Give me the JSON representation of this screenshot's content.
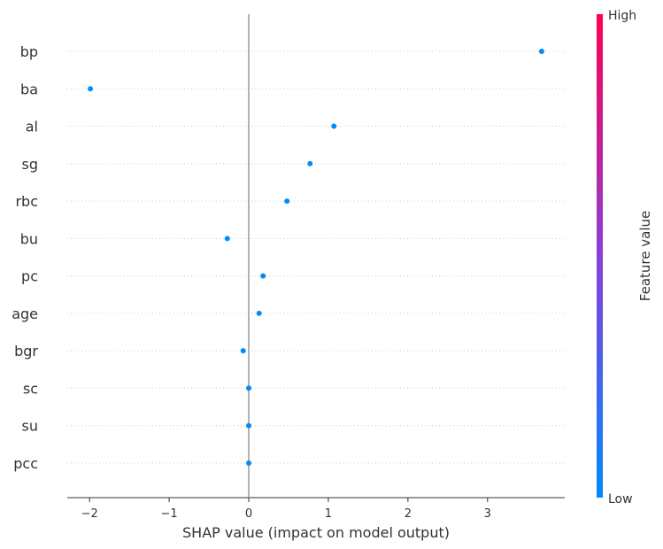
{
  "chart_data": {
    "type": "scatter",
    "xlabel": "SHAP value (impact on model output)",
    "xlim": [
      -2.28,
      3.97
    ],
    "x_ticks": [
      -2,
      -1,
      0,
      1,
      2,
      3
    ],
    "x_tick_labels": [
      "−2",
      "−1",
      "0",
      "1",
      "2",
      "3"
    ],
    "features": [
      "bp",
      "ba",
      "al",
      "sg",
      "rbc",
      "bu",
      "pc",
      "age",
      "bgr",
      "sc",
      "su",
      "pcc"
    ],
    "shap_values": [
      3.68,
      -1.99,
      1.07,
      0.77,
      0.48,
      -0.27,
      0.18,
      0.13,
      -0.07,
      0.0,
      0.0,
      0.0
    ],
    "point_color": "#008bfb",
    "colorbar": {
      "label": "Feature value",
      "high_label": "High",
      "low_label": "Low",
      "colors": [
        "#008afb",
        "#ff0051"
      ]
    }
  }
}
